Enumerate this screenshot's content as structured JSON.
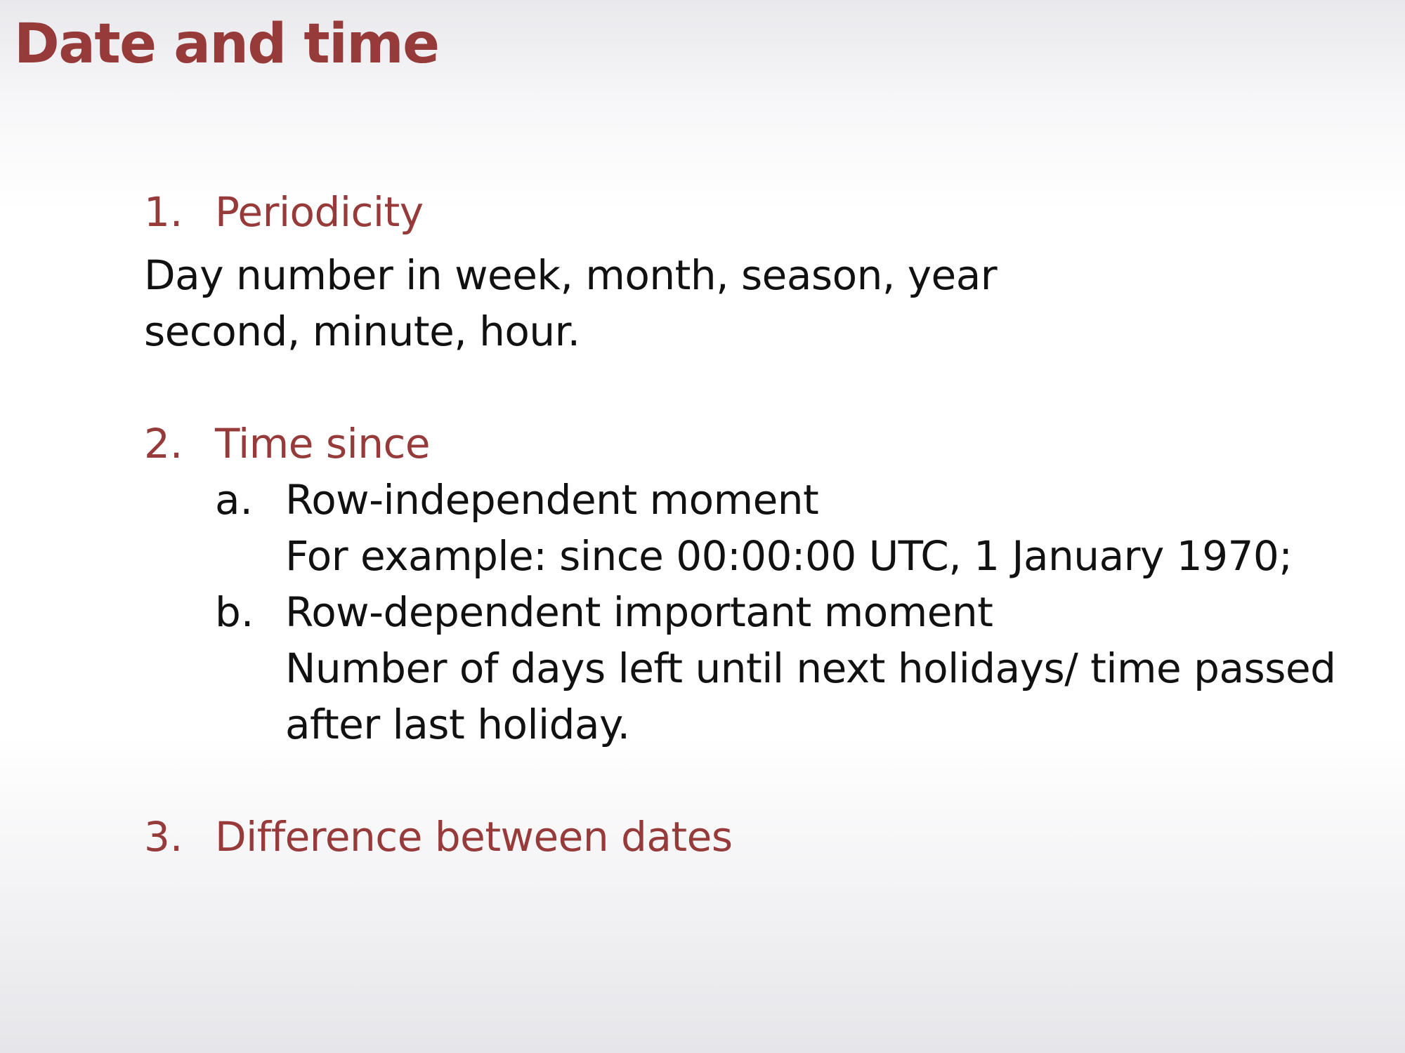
{
  "slide": {
    "title": "Date and time",
    "items": [
      {
        "number": "1.",
        "heading": "Periodicity",
        "body": [
          "Day number in week, month, season, year",
          "second, minute, hour."
        ]
      },
      {
        "number": "2.",
        "heading": "Time since",
        "subitems": [
          {
            "letter": "a.",
            "heading": "Row-independent moment",
            "body": [
              "For example: since 00:00:00 UTC, 1 January 1970;"
            ]
          },
          {
            "letter": "b.",
            "heading": "Row-dependent important moment",
            "body": [
              "Number of days left until next holidays/ time passed",
              "after last holiday."
            ]
          }
        ]
      },
      {
        "number": "3.",
        "heading": "Difference between dates"
      }
    ]
  },
  "colors": {
    "accent": "#963a3a",
    "text": "#111111"
  }
}
